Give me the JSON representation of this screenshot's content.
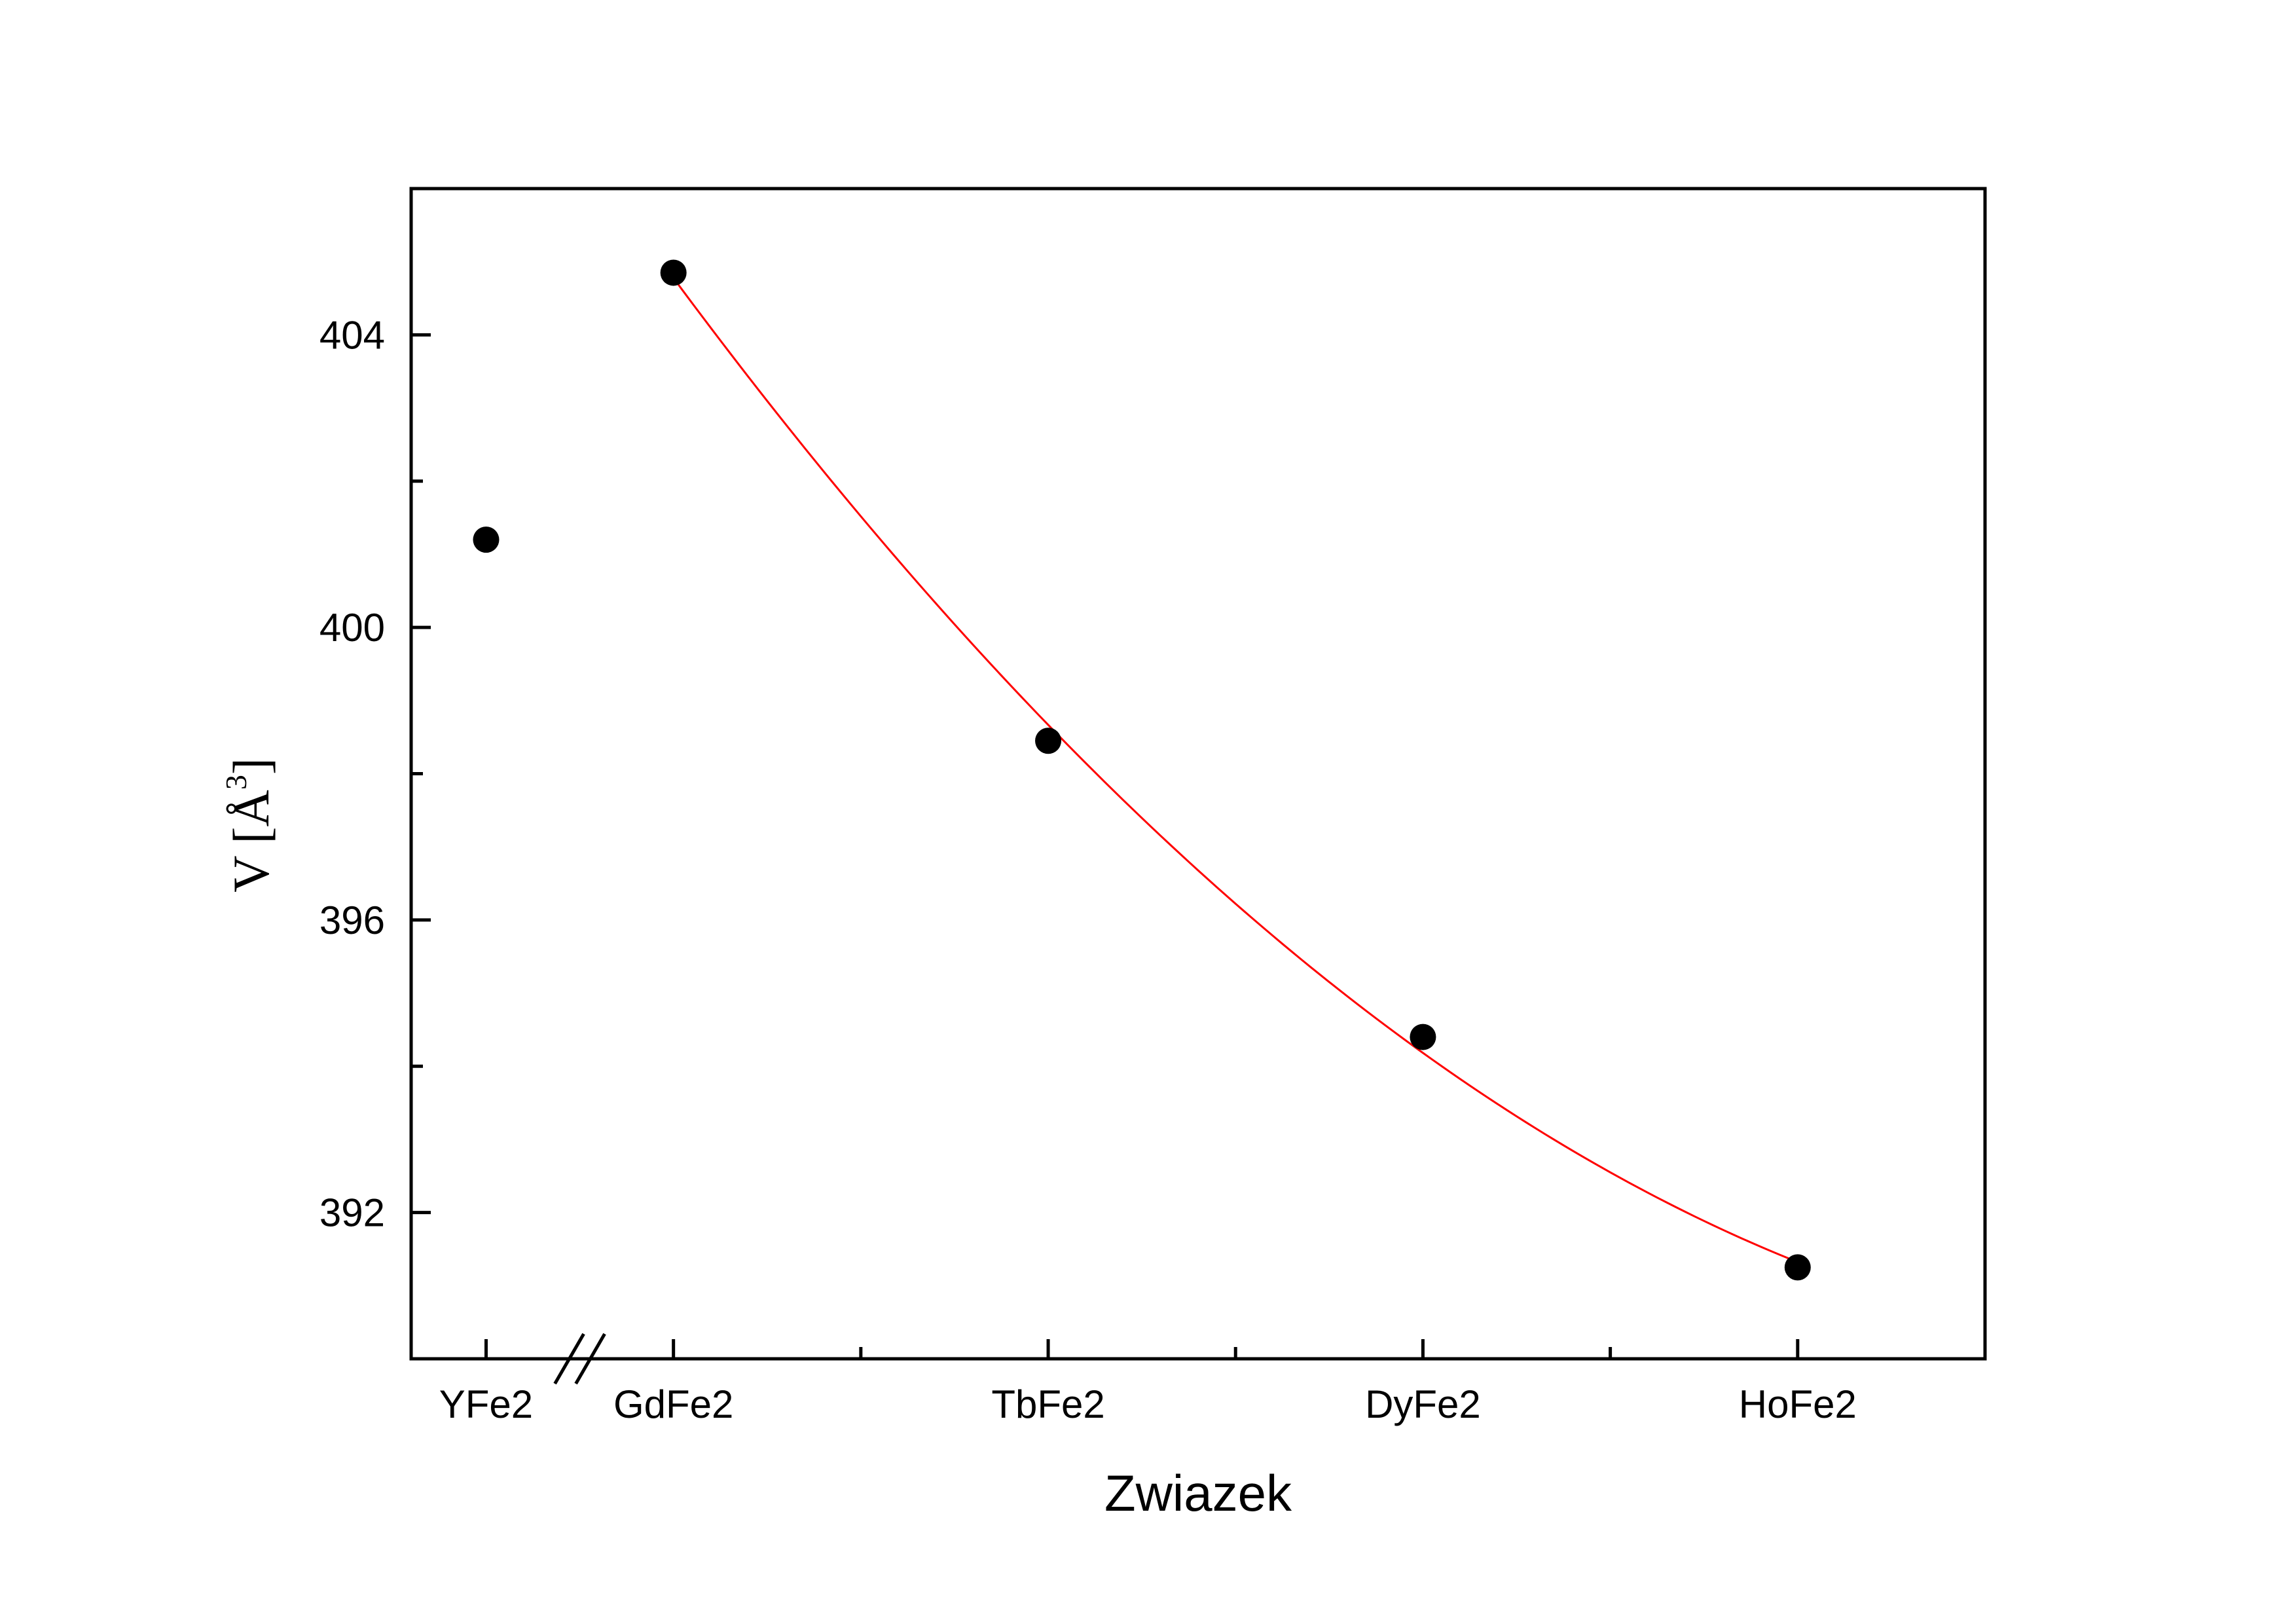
{
  "chart_data": {
    "type": "scatter",
    "categories": [
      "YFe2",
      "GdFe2",
      "TbFe2",
      "DyFe2",
      "HoFe2"
    ],
    "category_positions": [
      0,
      1,
      3,
      5,
      7
    ],
    "series": [
      {
        "values": [
          401.2,
          404.85,
          398.45,
          394.4,
          391.25
        ],
        "marker": "circle",
        "color": "#000000"
      }
    ],
    "fit_line": {
      "color": "#ff0000",
      "from_category": "GdFe2",
      "type": "polynomial-2"
    },
    "xlabel": "Zwiazek",
    "ylabel": {
      "symbol": "V [Å",
      "superscript": "3",
      "close": "]"
    },
    "yticks": [
      "392",
      "396",
      "400",
      "404"
    ],
    "ylim": [
      390,
      406
    ],
    "xlim": [
      -0.4,
      8.0
    ],
    "axis_break": "between YFe2 and GdFe2",
    "minor_x_ticks_at": [
      2,
      4,
      6
    ],
    "minor_y_ticks_at": [
      394,
      398,
      402
    ],
    "grid": false,
    "legend": "none"
  }
}
